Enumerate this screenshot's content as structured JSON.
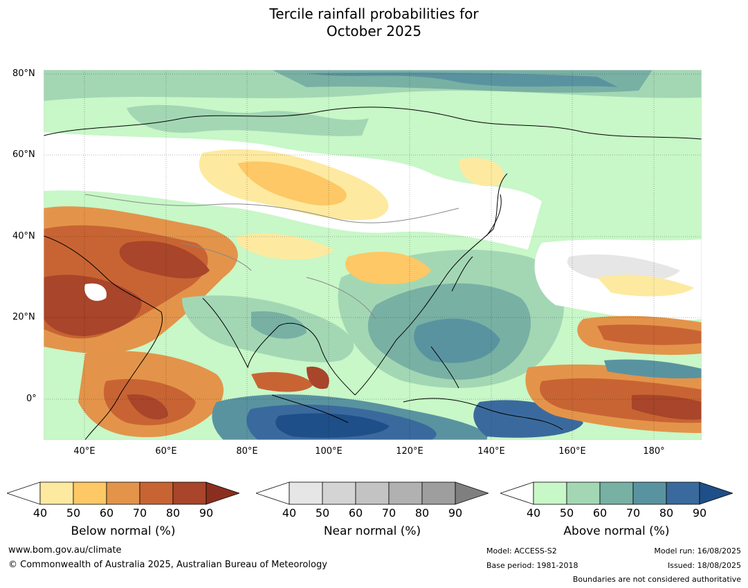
{
  "title_line1": "Tercile rainfall probabilities for",
  "title_line2": "October 2025",
  "lat_labels": [
    "80°N",
    "60°N",
    "40°N",
    "20°N",
    "0°"
  ],
  "lon_labels": [
    "40°E",
    "60°E",
    "80°E",
    "100°E",
    "120°E",
    "140°E",
    "160°E",
    "180°"
  ],
  "colorbars": [
    {
      "label": "Below normal (%)",
      "ticks": [
        "40",
        "50",
        "60",
        "70",
        "80",
        "90"
      ],
      "colors": [
        "#ffffff",
        "#fdeaa0",
        "#fdc865",
        "#e3944a",
        "#c86433",
        "#a8452a",
        "#8a2f1f"
      ]
    },
    {
      "label": "Near normal (%)",
      "ticks": [
        "40",
        "50",
        "60",
        "70",
        "80",
        "90"
      ],
      "colors": [
        "#ffffff",
        "#e6e6e6",
        "#d4d4d4",
        "#c3c3c3",
        "#b1b1b1",
        "#9e9e9e",
        "#7f7f7f"
      ]
    },
    {
      "label": "Above normal (%)",
      "ticks": [
        "40",
        "50",
        "60",
        "70",
        "80",
        "90"
      ],
      "colors": [
        "#ffffff",
        "#c8f7c8",
        "#a3d7b4",
        "#78b0a4",
        "#5a93a0",
        "#3a6a9d",
        "#1f4f88"
      ]
    }
  ],
  "footer": {
    "website": "www.bom.gov.au/climate",
    "copyright": "© Commonwealth of Australia 2025, Australian Bureau of Meteorology",
    "model": "Model: ACCESS-S2",
    "base_period": "Base period: 1981-2018",
    "model_run": "Model run: 16/08/2025",
    "issued": "Issued: 18/08/2025",
    "disclaimer": "Boundaries are not considered authoritative"
  }
}
